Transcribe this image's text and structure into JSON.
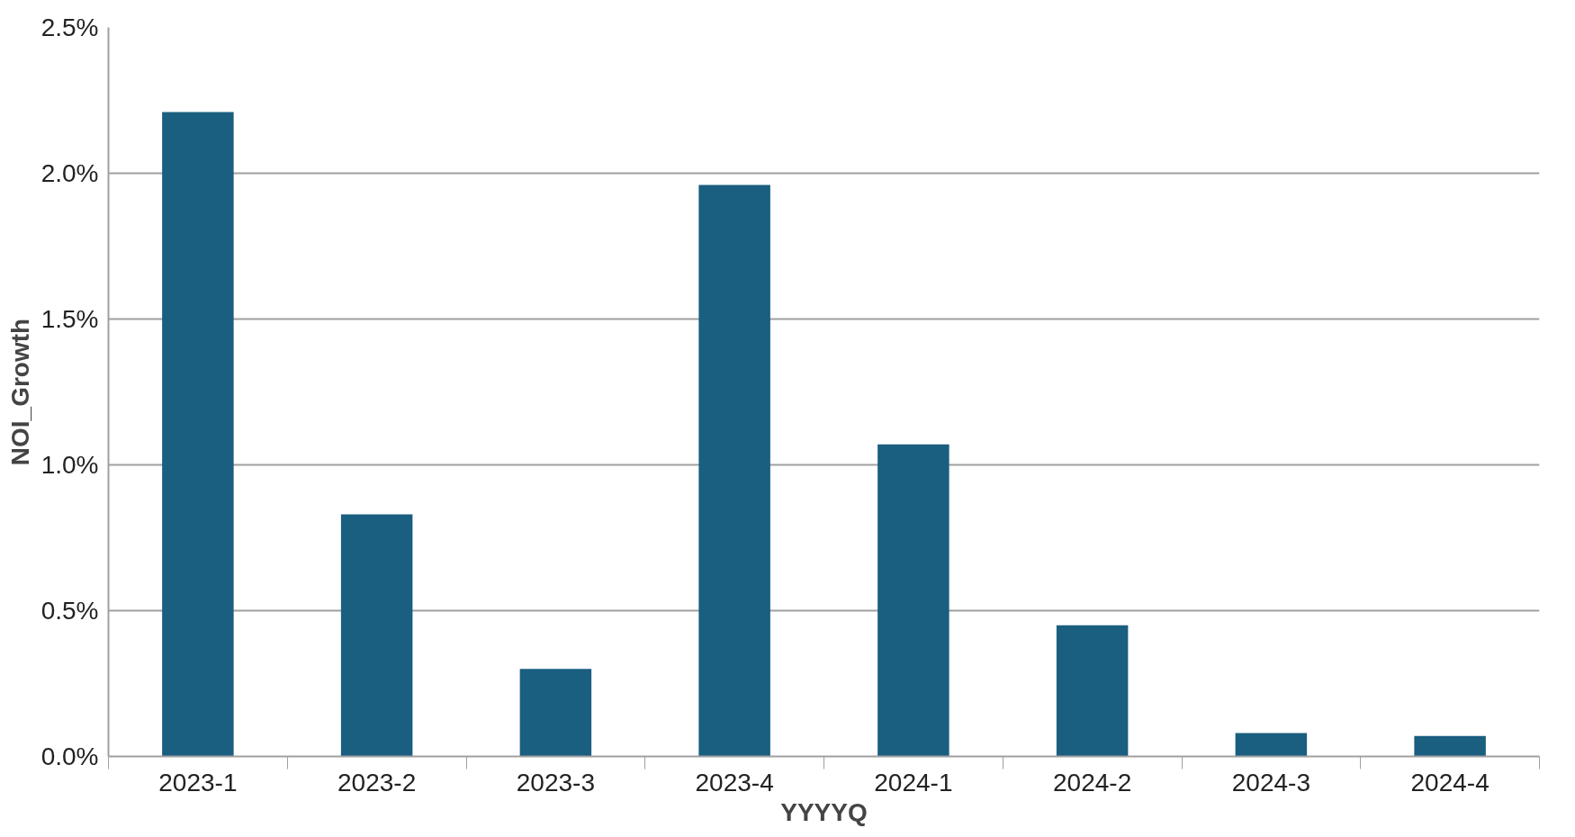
{
  "chart_data": {
    "type": "bar",
    "xlabel": "YYYYQ",
    "ylabel": "NOI_Growth",
    "categories": [
      "2023-1",
      "2023-2",
      "2023-3",
      "2023-4",
      "2024-1",
      "2024-2",
      "2024-3",
      "2024-4"
    ],
    "values": [
      2.21,
      0.83,
      0.3,
      1.96,
      1.07,
      0.45,
      0.08,
      0.07
    ],
    "color": "#1a5e80",
    "ylim": [
      0,
      2.5
    ],
    "yticks": [
      {
        "value": 0,
        "label": "0.0%"
      },
      {
        "value": 0.5,
        "label": "0.5%"
      },
      {
        "value": 1,
        "label": "1.0%"
      },
      {
        "value": 1.5,
        "label": "1.5%"
      },
      {
        "value": 2,
        "label": "2.0%"
      },
      {
        "value": 2.5,
        "label": "2.5%"
      }
    ],
    "grid": "y"
  }
}
